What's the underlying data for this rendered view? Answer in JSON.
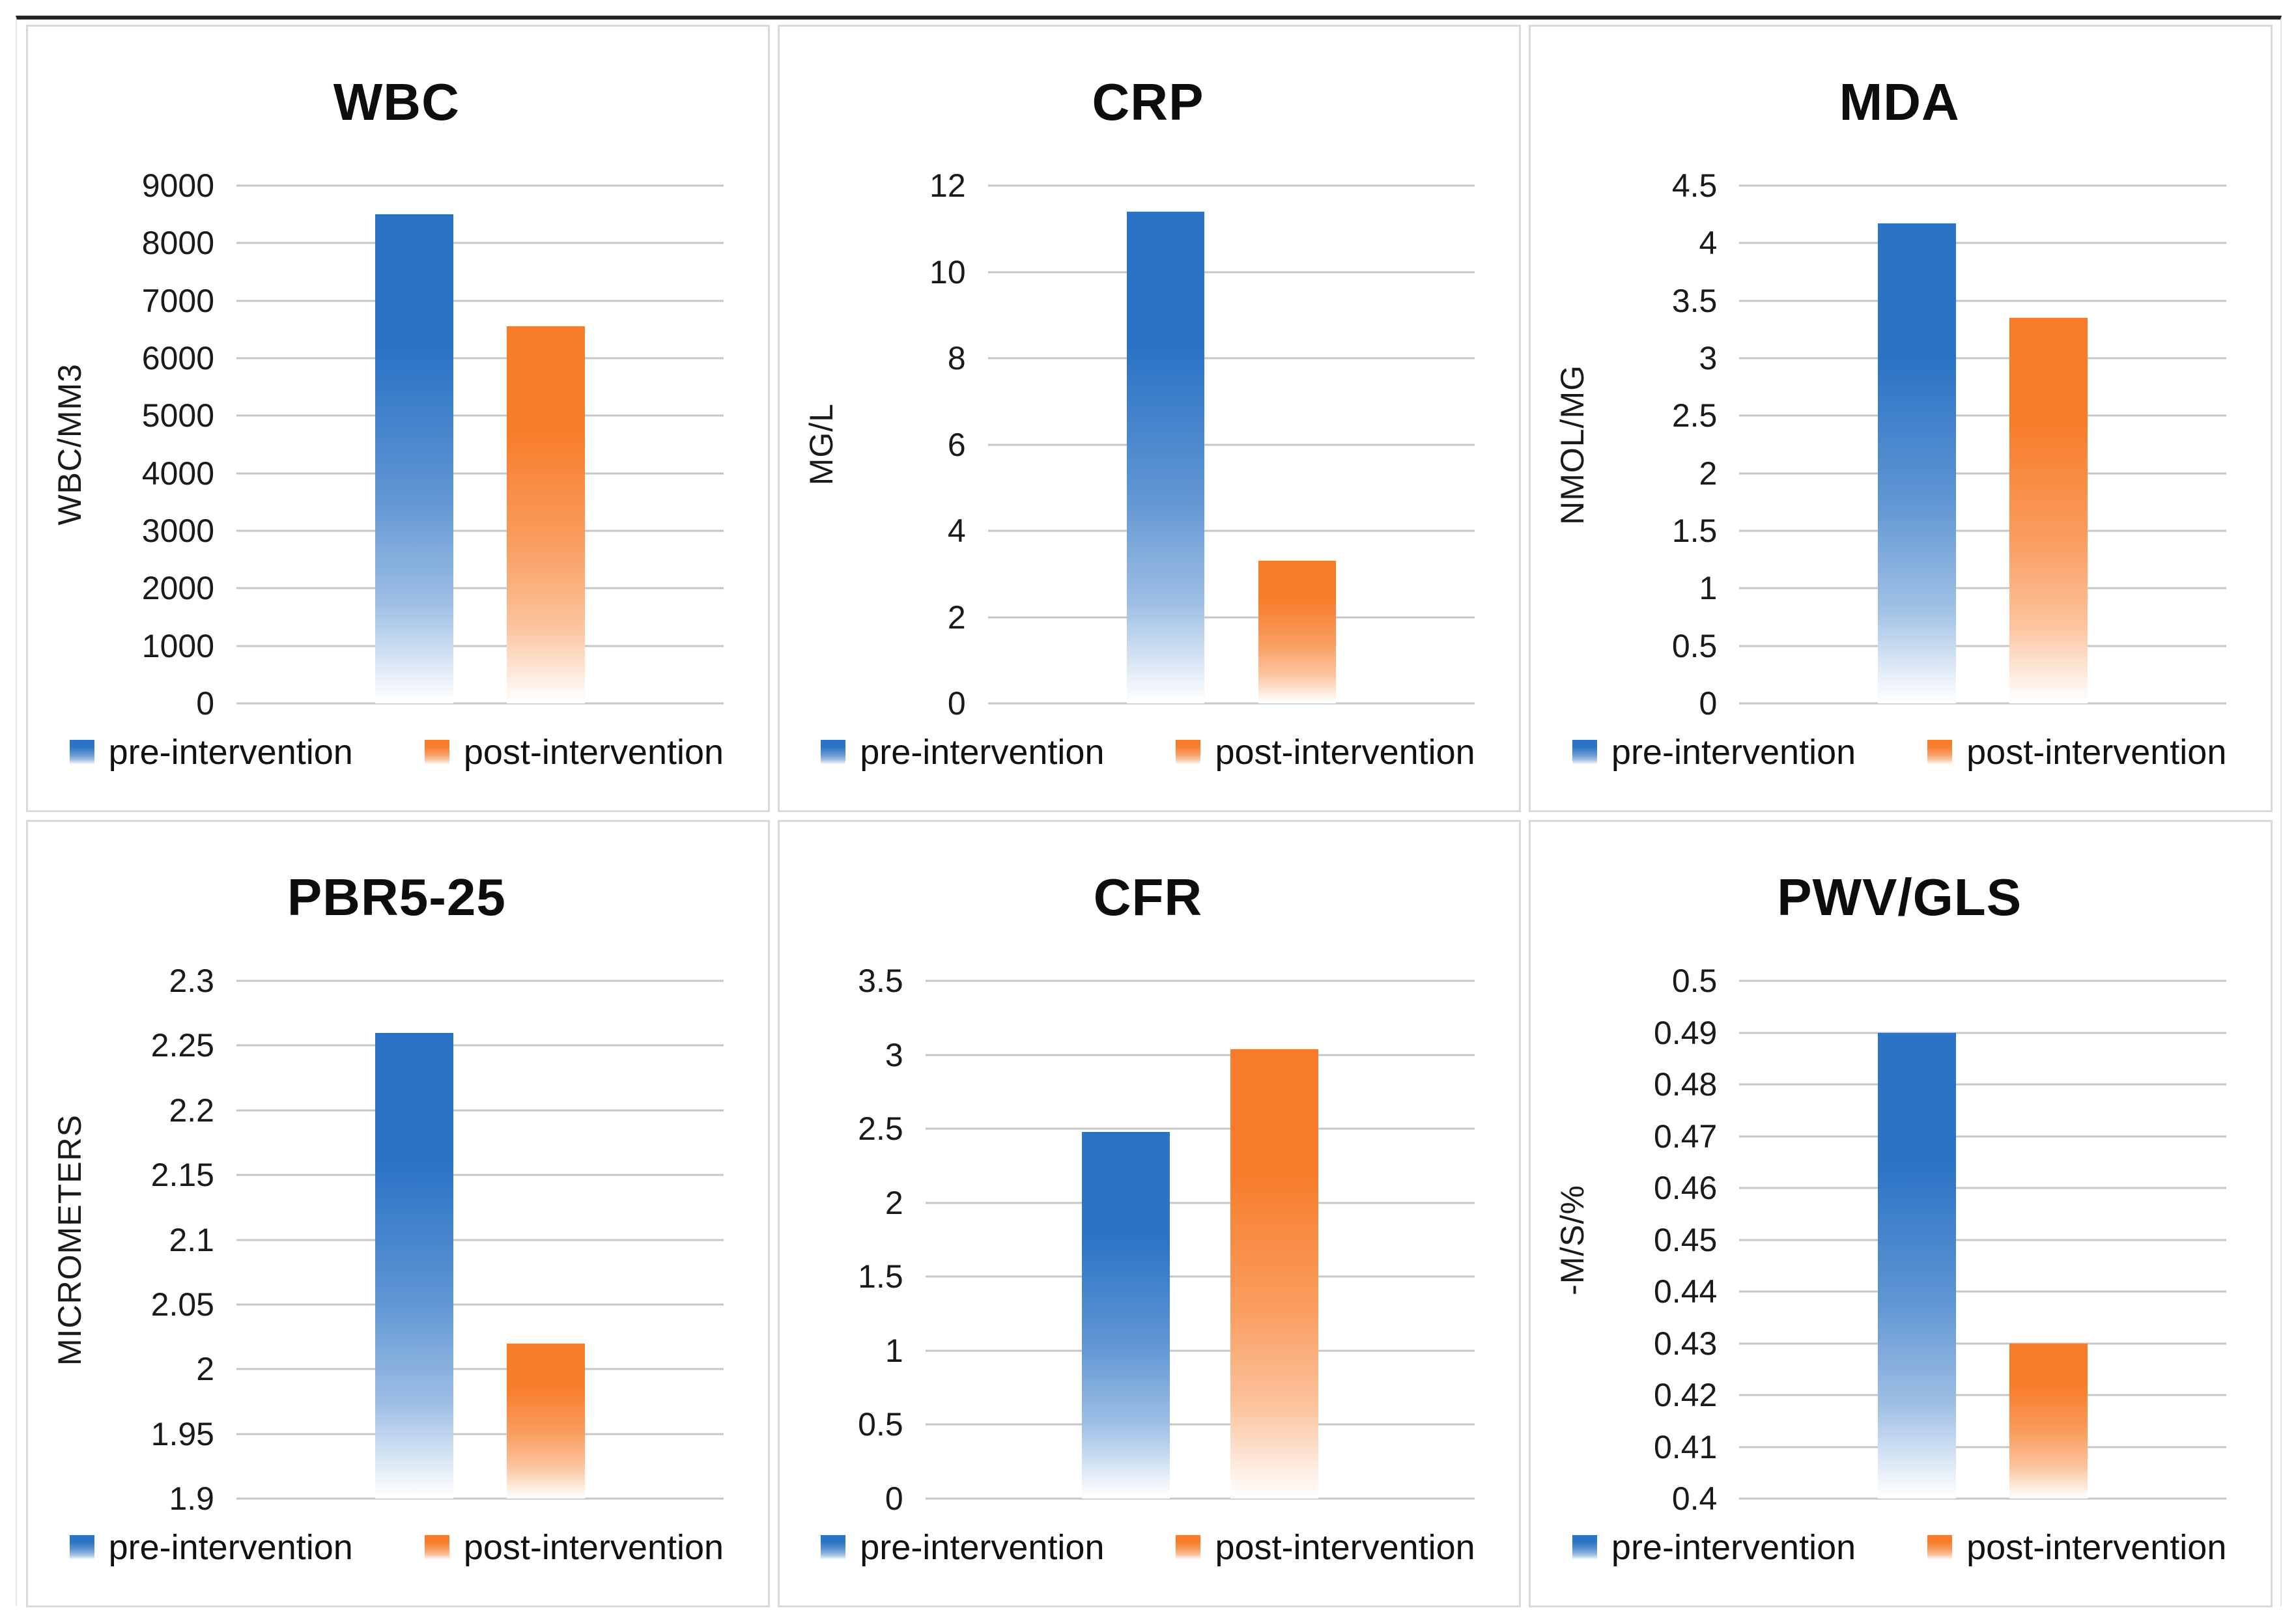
{
  "figure": {
    "legend_labels": [
      "pre-intervention",
      "post-intervention"
    ],
    "colors": {
      "pre": "#2B73C5",
      "post": "#F87D2B",
      "gridline": "#C6C6C6",
      "panel_border": "#D9D9D9",
      "top_rule": "#262626"
    }
  },
  "chart_data": [
    {
      "type": "bar",
      "title": "WBC",
      "ylabel": "WBC/MM3",
      "ylim": [
        0,
        9000
      ],
      "grid": true,
      "legend_position": "bottom",
      "yticks": [
        0,
        1000,
        2000,
        3000,
        4000,
        5000,
        6000,
        7000,
        8000,
        9000
      ],
      "ytick_labels": [
        "0",
        "1000",
        "2000",
        "3000",
        "4000",
        "5000",
        "6000",
        "7000",
        "8000",
        "9000"
      ],
      "categories": [
        "pre-intervention",
        "post-intervention"
      ],
      "values": [
        8500,
        6550
      ]
    },
    {
      "type": "bar",
      "title": "CRP",
      "ylabel": "MG/L",
      "ylim": [
        0,
        12
      ],
      "grid": true,
      "legend_position": "bottom",
      "yticks": [
        0,
        2,
        4,
        6,
        8,
        10,
        12
      ],
      "ytick_labels": [
        "0",
        "2",
        "4",
        "6",
        "8",
        "10",
        "12"
      ],
      "categories": [
        "pre-intervention",
        "post-intervention"
      ],
      "values": [
        11.4,
        3.3
      ]
    },
    {
      "type": "bar",
      "title": "MDA",
      "ylabel": "NMOL/MG",
      "ylim": [
        0,
        4.5
      ],
      "grid": true,
      "legend_position": "bottom",
      "yticks": [
        0,
        0.5,
        1,
        1.5,
        2,
        2.5,
        3,
        3.5,
        4,
        4.5
      ],
      "ytick_labels": [
        "0",
        "0.5",
        "1",
        "1.5",
        "2",
        "2.5",
        "3",
        "3.5",
        "4",
        "4.5"
      ],
      "categories": [
        "pre-intervention",
        "post-intervention"
      ],
      "values": [
        4.17,
        3.35
      ]
    },
    {
      "type": "bar",
      "title": "PBR5-25",
      "ylabel": "MICROMETERS",
      "ylim": [
        1.9,
        2.3
      ],
      "grid": true,
      "legend_position": "bottom",
      "yticks": [
        1.9,
        1.95,
        2,
        2.05,
        2.1,
        2.15,
        2.2,
        2.25,
        2.3
      ],
      "ytick_labels": [
        "1.9",
        "1.95",
        "2",
        "2.05",
        "2.1",
        "2.15",
        "2.2",
        "2.25",
        "2.3"
      ],
      "categories": [
        "pre-intervention",
        "post-intervention"
      ],
      "values": [
        2.26,
        2.02
      ]
    },
    {
      "type": "bar",
      "title": "CFR",
      "ylabel": "",
      "ylim": [
        0,
        3.5
      ],
      "grid": true,
      "legend_position": "bottom",
      "yticks": [
        0,
        0.5,
        1,
        1.5,
        2,
        2.5,
        3,
        3.5
      ],
      "ytick_labels": [
        "0",
        "0.5",
        "1",
        "1.5",
        "2",
        "2.5",
        "3",
        "3.5"
      ],
      "categories": [
        "pre-intervention",
        "post-intervention"
      ],
      "values": [
        2.48,
        3.04
      ]
    },
    {
      "type": "bar",
      "title": "PWV/GLS",
      "ylabel": "-M/S/%",
      "ylim": [
        0.4,
        0.5
      ],
      "grid": true,
      "legend_position": "bottom",
      "yticks": [
        0.4,
        0.41,
        0.42,
        0.43,
        0.44,
        0.45,
        0.46,
        0.47,
        0.48,
        0.49,
        0.5
      ],
      "ytick_labels": [
        "0.4",
        "0.41",
        "0.42",
        "0.43",
        "0.44",
        "0.45",
        "0.46",
        "0.47",
        "0.48",
        "0.49",
        "0.5"
      ],
      "categories": [
        "pre-intervention",
        "post-intervention"
      ],
      "values": [
        0.49,
        0.43
      ]
    }
  ]
}
